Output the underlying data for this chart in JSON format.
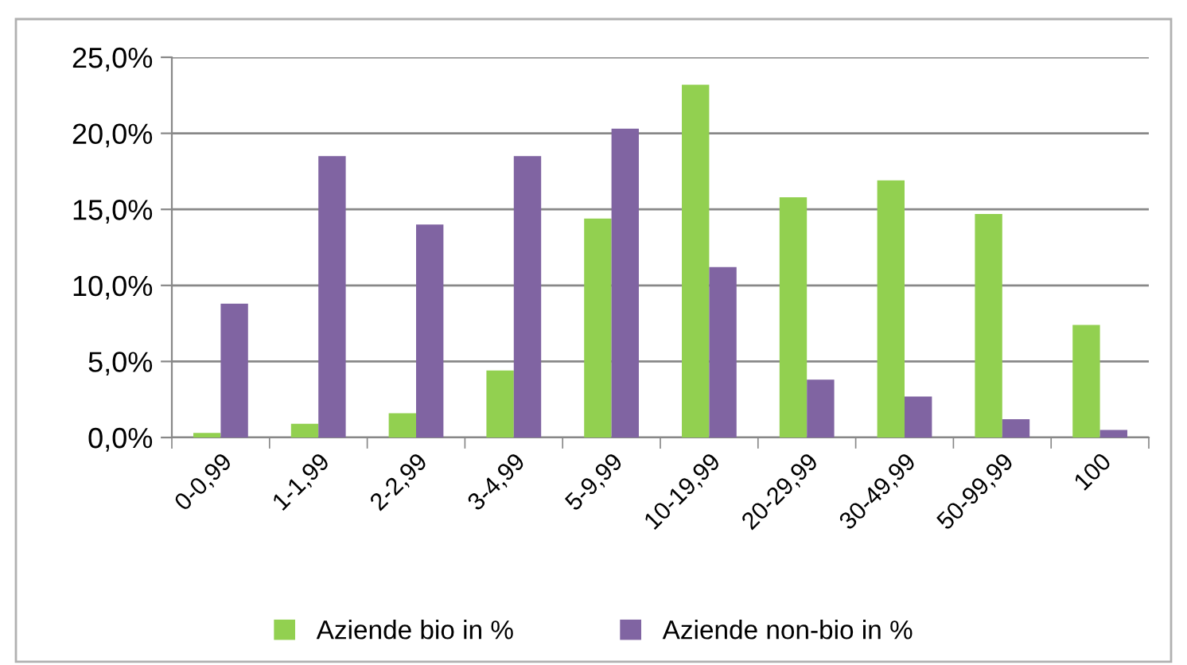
{
  "chart_data": {
    "type": "bar",
    "categories": [
      "0-0,99",
      "1-1,99",
      "2-2,99",
      "3-4,99",
      "5-9,99",
      "10-19,99",
      "20-29,99",
      "30-49,99",
      "50-99,99",
      "100"
    ],
    "series": [
      {
        "name": "Aziende bio in %",
        "color": "#92d050",
        "values": [
          0.3,
          0.9,
          1.6,
          4.4,
          14.4,
          23.2,
          15.8,
          16.9,
          14.7,
          7.4
        ]
      },
      {
        "name": "Aziende non-bio in %",
        "color": "#8064a2",
        "values": [
          8.8,
          18.5,
          14.0,
          18.5,
          20.3,
          11.2,
          3.8,
          2.7,
          1.2,
          0.5
        ]
      }
    ],
    "ylim": [
      0,
      25
    ],
    "yticks": [
      {
        "value": 0,
        "label": "0,0%"
      },
      {
        "value": 5,
        "label": "5,0%"
      },
      {
        "value": 10,
        "label": "10,0%"
      },
      {
        "value": 15,
        "label": "15,0%"
      },
      {
        "value": 20,
        "label": "20,0%"
      },
      {
        "value": 25,
        "label": "25,0%"
      }
    ],
    "grid": "y",
    "legend": "bottom"
  }
}
